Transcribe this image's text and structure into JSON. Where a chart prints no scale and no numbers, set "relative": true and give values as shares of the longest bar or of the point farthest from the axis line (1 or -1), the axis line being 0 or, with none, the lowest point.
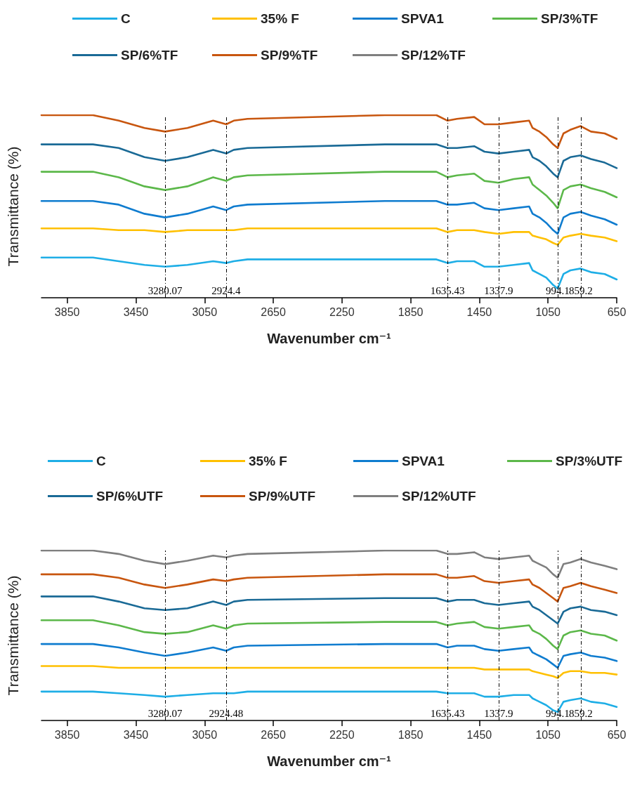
{
  "chart_data": [
    {
      "type": "line",
      "relative": true,
      "xlabel": "Wavenumber cm⁻¹",
      "ylabel": "Transmittance (%)",
      "legend": "top",
      "marker": "none",
      "line_style": "solid",
      "xlim": [
        4000,
        650
      ],
      "xticks": [
        3850,
        3450,
        3050,
        2650,
        2250,
        1850,
        1450,
        1050,
        650
      ],
      "x": [
        4000,
        3700,
        3550,
        3400,
        3280,
        3150,
        3000,
        2924,
        2880,
        2800,
        2000,
        1700,
        1635,
        1580,
        1480,
        1420,
        1338,
        1250,
        1160,
        1140,
        1100,
        1060,
        1020,
        994,
        960,
        920,
        860,
        800,
        720,
        650
      ],
      "series": [
        {
          "name": "C",
          "color": "#1eaee6",
          "values": [
            0.22,
            0.22,
            0.2,
            0.18,
            0.17,
            0.18,
            0.2,
            0.19,
            0.2,
            0.21,
            0.21,
            0.21,
            0.19,
            0.2,
            0.2,
            0.17,
            0.17,
            0.18,
            0.19,
            0.15,
            0.13,
            0.11,
            0.07,
            0.05,
            0.13,
            0.15,
            0.16,
            0.14,
            0.13,
            0.1
          ]
        },
        {
          "name": "35% F",
          "color": "#ffc000",
          "values": [
            0.38,
            0.38,
            0.37,
            0.37,
            0.36,
            0.37,
            0.37,
            0.37,
            0.37,
            0.38,
            0.38,
            0.38,
            0.36,
            0.37,
            0.37,
            0.36,
            0.35,
            0.36,
            0.36,
            0.34,
            0.33,
            0.32,
            0.3,
            0.29,
            0.33,
            0.34,
            0.35,
            0.34,
            0.33,
            0.31
          ]
        },
        {
          "name": "SPVA1",
          "color": "#0f7ccf",
          "values": [
            0.53,
            0.53,
            0.51,
            0.46,
            0.44,
            0.46,
            0.5,
            0.48,
            0.5,
            0.51,
            0.53,
            0.53,
            0.51,
            0.51,
            0.52,
            0.49,
            0.48,
            0.49,
            0.5,
            0.46,
            0.44,
            0.41,
            0.37,
            0.35,
            0.44,
            0.46,
            0.47,
            0.45,
            0.43,
            0.4
          ]
        },
        {
          "name": "SP/3%TF",
          "color": "#5cb84a",
          "values": [
            0.69,
            0.69,
            0.66,
            0.61,
            0.59,
            0.61,
            0.66,
            0.64,
            0.66,
            0.67,
            0.69,
            0.69,
            0.66,
            0.67,
            0.68,
            0.64,
            0.63,
            0.65,
            0.66,
            0.62,
            0.59,
            0.56,
            0.52,
            0.49,
            0.59,
            0.61,
            0.62,
            0.6,
            0.58,
            0.55
          ]
        },
        {
          "name": "SP/6%TF",
          "color": "#1a6a96",
          "values": [
            0.84,
            0.84,
            0.82,
            0.77,
            0.75,
            0.77,
            0.81,
            0.79,
            0.81,
            0.82,
            0.84,
            0.84,
            0.82,
            0.82,
            0.83,
            0.8,
            0.79,
            0.8,
            0.81,
            0.77,
            0.75,
            0.72,
            0.68,
            0.66,
            0.75,
            0.77,
            0.78,
            0.76,
            0.74,
            0.71
          ]
        },
        {
          "name": "SP/9%TF",
          "color": "#c8560f",
          "values": [
            1,
            1,
            0.97,
            0.93,
            0.91,
            0.93,
            0.97,
            0.95,
            0.97,
            0.98,
            1,
            1,
            0.97,
            0.98,
            0.99,
            0.95,
            0.95,
            0.96,
            0.97,
            0.93,
            0.91,
            0.88,
            0.84,
            0.82,
            0.9,
            0.92,
            0.94,
            0.91,
            0.9,
            0.87
          ]
        },
        {
          "name": "SP/12%TF",
          "color": "#7f7f7f",
          "values": [
            null,
            null,
            null,
            null,
            null,
            null,
            null,
            null,
            null,
            null,
            null,
            null,
            null,
            null,
            null,
            null,
            null,
            null,
            null,
            null,
            null,
            null,
            null,
            null,
            null,
            null,
            null,
            null,
            null,
            null
          ]
        }
      ],
      "ref_lines": [
        {
          "axis": "x",
          "value": 3280.07,
          "label": "3280.07",
          "color": "#000000",
          "line_style": "dashed"
        },
        {
          "axis": "x",
          "value": 2924.4,
          "label": "2924.4",
          "color": "#000000",
          "line_style": "dashed"
        },
        {
          "axis": "x",
          "value": 1635.43,
          "label": "1635.43",
          "color": "#000000",
          "line_style": "dashed"
        },
        {
          "axis": "x",
          "value": 1337.9,
          "label": "1337.9",
          "color": "#000000",
          "line_style": "dashed"
        },
        {
          "axis": "x",
          "value": 994.1,
          "label": "994.1",
          "color": "#000000",
          "line_style": "dashed"
        },
        {
          "axis": "x",
          "value": 859.2,
          "label": "859.2",
          "color": "#000000",
          "line_style": "dashed"
        }
      ]
    },
    {
      "type": "line",
      "relative": true,
      "xlabel": "Wavenumber cm⁻¹",
      "ylabel": "Transmittance (%)",
      "legend": "top",
      "marker": "none",
      "line_style": "solid",
      "xlim": [
        4000,
        650
      ],
      "xticks": [
        3850,
        3450,
        3050,
        2650,
        2250,
        1850,
        1450,
        1050,
        650
      ],
      "x": [
        4000,
        3700,
        3550,
        3400,
        3280,
        3150,
        3000,
        2924,
        2880,
        2800,
        2000,
        1700,
        1635,
        1580,
        1480,
        1420,
        1338,
        1250,
        1160,
        1140,
        1100,
        1060,
        1020,
        994,
        960,
        920,
        860,
        800,
        720,
        650
      ],
      "series": [
        {
          "name": "C",
          "color": "#1eaee6",
          "values": [
            0.17,
            0.17,
            0.16,
            0.15,
            0.14,
            0.15,
            0.16,
            0.16,
            0.16,
            0.17,
            0.17,
            0.17,
            0.16,
            0.16,
            0.16,
            0.14,
            0.14,
            0.15,
            0.15,
            0.13,
            0.11,
            0.09,
            0.06,
            0.05,
            0.11,
            0.12,
            0.13,
            0.11,
            0.1,
            0.08
          ]
        },
        {
          "name": "35% F",
          "color": "#ffc000",
          "values": [
            0.32,
            0.32,
            0.31,
            0.31,
            0.31,
            0.31,
            0.31,
            0.31,
            0.31,
            0.31,
            0.31,
            0.31,
            0.31,
            0.31,
            0.31,
            0.3,
            0.3,
            0.3,
            0.3,
            0.29,
            0.28,
            0.27,
            0.26,
            0.25,
            0.28,
            0.29,
            0.29,
            0.28,
            0.28,
            0.27
          ]
        },
        {
          "name": "SPVA1",
          "color": "#0f7ccf",
          "values": [
            0.45,
            0.45,
            0.43,
            0.4,
            0.38,
            0.4,
            0.43,
            0.41,
            0.43,
            0.44,
            0.45,
            0.45,
            0.43,
            0.44,
            0.44,
            0.42,
            0.41,
            0.42,
            0.43,
            0.4,
            0.38,
            0.36,
            0.33,
            0.31,
            0.38,
            0.39,
            0.4,
            0.38,
            0.37,
            0.35
          ]
        },
        {
          "name": "SP/3%UTF",
          "color": "#5cb84a",
          "values": [
            0.59,
            0.59,
            0.56,
            0.52,
            0.51,
            0.52,
            0.56,
            0.54,
            0.56,
            0.57,
            0.58,
            0.58,
            0.56,
            0.57,
            0.58,
            0.55,
            0.54,
            0.55,
            0.56,
            0.53,
            0.51,
            0.48,
            0.44,
            0.42,
            0.5,
            0.52,
            0.53,
            0.51,
            0.5,
            0.47
          ]
        },
        {
          "name": "SP/6%UTF",
          "color": "#1a6a96",
          "values": [
            0.73,
            0.73,
            0.7,
            0.66,
            0.65,
            0.66,
            0.7,
            0.68,
            0.7,
            0.71,
            0.72,
            0.72,
            0.7,
            0.71,
            0.71,
            0.69,
            0.68,
            0.69,
            0.7,
            0.67,
            0.65,
            0.62,
            0.59,
            0.57,
            0.64,
            0.66,
            0.67,
            0.65,
            0.64,
            0.62
          ]
        },
        {
          "name": "SP/9%UTF",
          "color": "#c8560f",
          "values": [
            0.86,
            0.86,
            0.84,
            0.8,
            0.78,
            0.8,
            0.83,
            0.82,
            0.83,
            0.84,
            0.86,
            0.86,
            0.84,
            0.84,
            0.85,
            0.82,
            0.81,
            0.82,
            0.83,
            0.8,
            0.78,
            0.75,
            0.72,
            0.7,
            0.78,
            0.79,
            0.81,
            0.79,
            0.77,
            0.75
          ]
        },
        {
          "name": "SP/12%UTF",
          "color": "#7f7f7f",
          "values": [
            1,
            1,
            0.98,
            0.94,
            0.92,
            0.94,
            0.97,
            0.96,
            0.97,
            0.98,
            1,
            1,
            0.98,
            0.98,
            0.99,
            0.96,
            0.95,
            0.96,
            0.97,
            0.94,
            0.92,
            0.9,
            0.86,
            0.84,
            0.92,
            0.93,
            0.95,
            0.93,
            0.91,
            0.89
          ]
        }
      ],
      "ref_lines": [
        {
          "axis": "x",
          "value": 3280.07,
          "label": "3280.07",
          "color": "#000000",
          "line_style": "dashed"
        },
        {
          "axis": "x",
          "value": 2924.48,
          "label": "2924.48",
          "color": "#000000",
          "line_style": "dashed"
        },
        {
          "axis": "x",
          "value": 1635.43,
          "label": "1635.43",
          "color": "#000000",
          "line_style": "dashed"
        },
        {
          "axis": "x",
          "value": 1337.9,
          "label": "1337.9",
          "color": "#000000",
          "line_style": "dashed"
        },
        {
          "axis": "x",
          "value": 994.1,
          "label": "994.1",
          "color": "#000000",
          "line_style": "dashed"
        },
        {
          "axis": "x",
          "value": 859.2,
          "label": "859.2",
          "color": "#000000",
          "line_style": "dashed"
        }
      ]
    }
  ]
}
